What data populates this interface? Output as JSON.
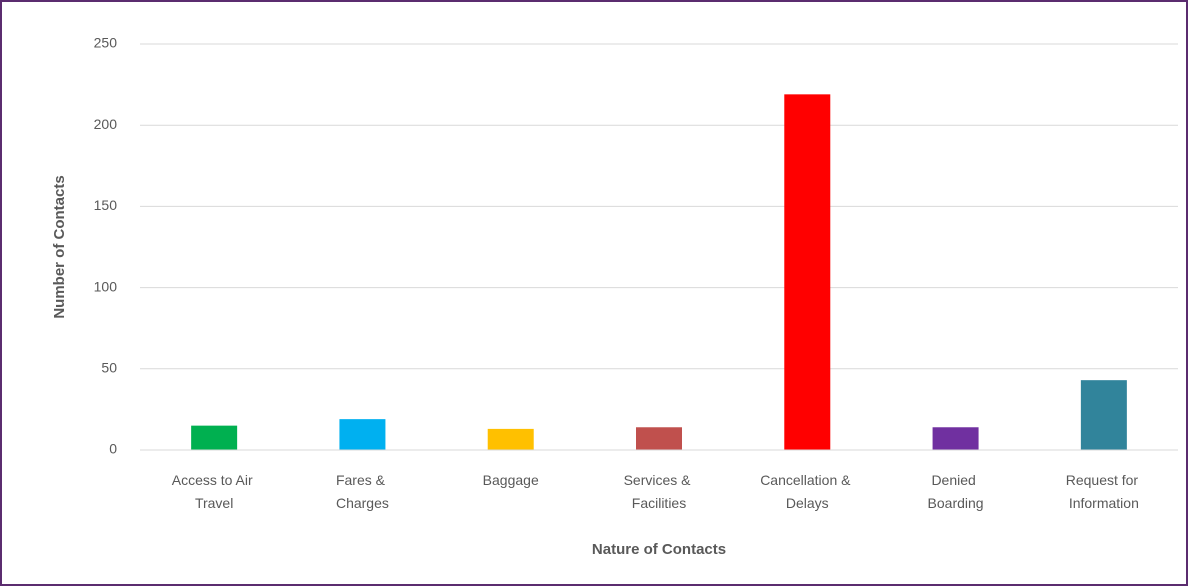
{
  "chart_data": {
    "type": "bar",
    "categories": [
      "Access to Air Travel",
      "Fares & Charges",
      "Baggage",
      "Services & Facilities",
      "Cancellation & Delays",
      "Denied Boarding",
      "Request for Information"
    ],
    "values": [
      15,
      19,
      13,
      14,
      219,
      14,
      43
    ],
    "colors": [
      "#00b050",
      "#00b0f0",
      "#ffc000",
      "#c0504d",
      "#ff0000",
      "#7030a0",
      "#31849b"
    ],
    "xlabel": "Nature of Contacts",
    "ylabel": "Number of Contacts",
    "ylim": [
      0,
      250
    ],
    "yticks": [
      0,
      50,
      100,
      150,
      200,
      250
    ],
    "grid": true
  }
}
